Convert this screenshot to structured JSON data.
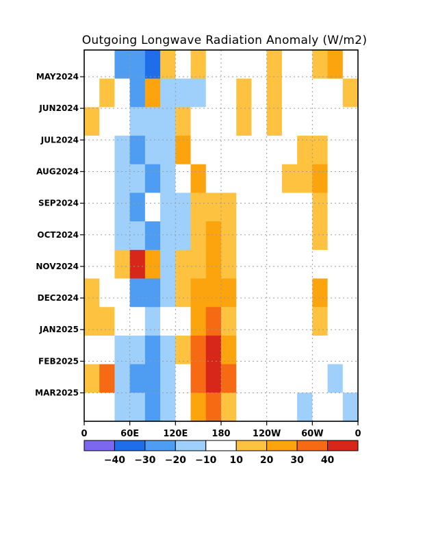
{
  "chart_data": {
    "type": "heatmap",
    "title": "Outgoing Longwave Radiation Anomaly (W/m2)",
    "xlabel": "",
    "ylabel": "",
    "x_ticks": [
      "0",
      "60E",
      "120E",
      "180",
      "120W",
      "60W",
      "0"
    ],
    "x_range_deg_east": [
      0,
      360
    ],
    "y_ticks": [
      "MAY2024",
      "JUN2024",
      "JUL2024",
      "AUG2024",
      "SEP2024",
      "OCT2024",
      "NOV2024",
      "DEC2024",
      "JAN2025",
      "FEB2025",
      "MAR2025"
    ],
    "grid": true,
    "colorbar": {
      "levels": [
        "-40",
        "-30",
        "-20",
        "-10",
        "10",
        "20",
        "30",
        "40"
      ],
      "colors": [
        "#7b68ee",
        "#1e6eea",
        "#4f9df2",
        "#9ed0fb",
        "#ffffff",
        "#fdc23f",
        "#fca40d",
        "#f76a14",
        "#d7271b"
      ]
    },
    "values": [
      [
        5,
        8,
        -30,
        -25,
        -35,
        10,
        5,
        12,
        8,
        -5,
        5,
        8,
        15,
        0,
        5,
        10,
        20,
        5
      ],
      [
        5,
        12,
        5,
        -25,
        22,
        -15,
        -20,
        -15,
        5,
        5,
        12,
        5,
        10,
        5,
        5,
        8,
        5,
        10
      ],
      [
        10,
        5,
        -5,
        -20,
        -15,
        -15,
        18,
        5,
        -5,
        5,
        12,
        5,
        15,
        5,
        5,
        5,
        5,
        0
      ],
      [
        5,
        -5,
        -18,
        -25,
        -20,
        -15,
        25,
        5,
        5,
        5,
        5,
        5,
        5,
        5,
        10,
        12,
        5,
        5
      ],
      [
        5,
        5,
        -20,
        -15,
        -22,
        -15,
        -5,
        20,
        5,
        5,
        5,
        5,
        5,
        10,
        15,
        20,
        5,
        -5
      ],
      [
        -5,
        5,
        -15,
        -25,
        -5,
        -15,
        -20,
        10,
        15,
        10,
        5,
        5,
        5,
        -5,
        5,
        12,
        5,
        5
      ],
      [
        8,
        -5,
        -15,
        -20,
        -25,
        -15,
        -18,
        15,
        20,
        15,
        5,
        5,
        5,
        5,
        5,
        10,
        5,
        -5
      ],
      [
        5,
        5,
        10,
        42,
        25,
        -20,
        15,
        15,
        20,
        10,
        5,
        5,
        5,
        -5,
        5,
        5,
        -10,
        5
      ],
      [
        12,
        5,
        -10,
        -25,
        -25,
        -15,
        10,
        20,
        25,
        20,
        5,
        5,
        5,
        5,
        5,
        20,
        -5,
        5
      ],
      [
        10,
        15,
        -5,
        -10,
        -15,
        -10,
        5,
        25,
        30,
        10,
        -10,
        -5,
        5,
        -5,
        -5,
        12,
        -5,
        5
      ],
      [
        5,
        -5,
        -15,
        -20,
        -25,
        -20,
        10,
        35,
        45,
        25,
        -5,
        -5,
        -5,
        -5,
        -10,
        -5,
        -5,
        -10
      ],
      [
        15,
        30,
        -20,
        -25,
        -30,
        -20,
        -5,
        35,
        48,
        30,
        5,
        -5,
        -5,
        -10,
        -5,
        -5,
        -15,
        -5
      ],
      [
        -5,
        -5,
        -15,
        -20,
        -25,
        -15,
        -10,
        20,
        30,
        15,
        -5,
        -5,
        -5,
        -5,
        -15,
        -10,
        -5,
        -15
      ]
    ]
  }
}
